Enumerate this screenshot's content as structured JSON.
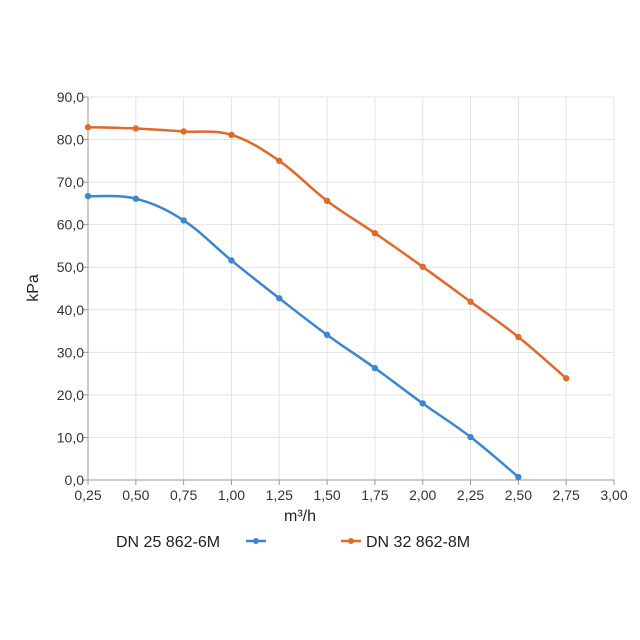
{
  "chart_data": {
    "type": "line",
    "title": "",
    "xlabel": "m³/h",
    "ylabel": "kPa",
    "xlim": [
      0.25,
      3.0
    ],
    "ylim": [
      0,
      90
    ],
    "x_ticks": [
      "0,25",
      "0,50",
      "0,75",
      "1,00",
      "1,25",
      "1,50",
      "1,75",
      "2,00",
      "2,25",
      "2,50",
      "2,75",
      "3,00"
    ],
    "y_ticks": [
      "0,0",
      "10,0",
      "20,0",
      "30,0",
      "40,0",
      "50,0",
      "60,0",
      "70,0",
      "80,0",
      "90,0"
    ],
    "grid": true,
    "legend_position": "bottom",
    "series": [
      {
        "name": "DN 25 862-6M",
        "color": "#3b86d1",
        "x": [
          0.25,
          0.5,
          0.75,
          1.0,
          1.25,
          1.5,
          1.75,
          2.0,
          2.25,
          2.5
        ],
        "y": [
          66.7,
          66.1,
          61.0,
          51.6,
          42.7,
          34.1,
          26.3,
          18.0,
          10.1,
          0.7
        ]
      },
      {
        "name": "DN 32 862-8M",
        "color": "#e0692e",
        "x": [
          0.25,
          0.5,
          0.75,
          1.0,
          1.25,
          1.5,
          1.75,
          2.0,
          2.25,
          2.5,
          2.75
        ],
        "y": [
          82.9,
          82.6,
          81.9,
          81.1,
          75.0,
          65.6,
          58.0,
          50.1,
          41.9,
          33.6,
          23.9
        ]
      }
    ]
  }
}
